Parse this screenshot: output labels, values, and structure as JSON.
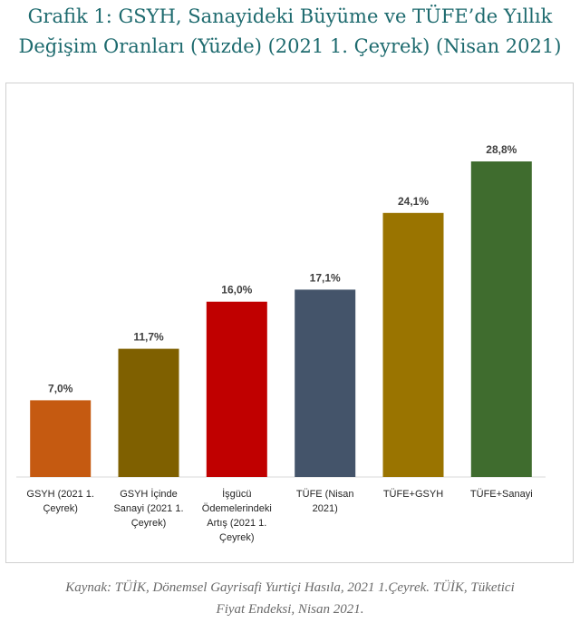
{
  "title": {
    "line1": "Grafik 1: GSYH, Sanayideki Büyüme ve TÜFE’de Yıllık",
    "line2": "Değişim Oranları (Yüzde) (2021 1. Çeyrek) (Nisan 2021)"
  },
  "source": {
    "line1": "Kaynak: TÜİK, Dönemsel Gayrisafi Yurtiçi Hasıla, 2021 1.Çeyrek. TÜİK, Tüketici",
    "line2": "Fiyat Endeksi, Nisan 2021."
  },
  "chart_data": {
    "type": "bar",
    "categories": [
      [
        "GSYH (2021 1.",
        "Çeyrek)"
      ],
      [
        "GSYH İçinde",
        "Sanayi (2021 1.",
        "Çeyrek)"
      ],
      [
        "İşgücü",
        "Ödemelerindeki",
        "Artış (2021 1.",
        "Çeyrek)"
      ],
      [
        "TÜFE (Nisan",
        "2021)"
      ],
      [
        "TÜFE+GSYH"
      ],
      [
        "TÜFE+Sanayi"
      ]
    ],
    "values": [
      7.0,
      11.7,
      16.0,
      17.1,
      24.1,
      28.8
    ],
    "value_labels": [
      "7,0%",
      "11,7%",
      "16,0%",
      "17,1%",
      "24,1%",
      "28,8%"
    ],
    "colors": [
      "#c55a11",
      "#7f6000",
      "#c00000",
      "#44546a",
      "#9a7400",
      "#3f6c2e"
    ],
    "ylim": [
      0,
      28.8
    ],
    "grid": false,
    "legend": "none"
  }
}
